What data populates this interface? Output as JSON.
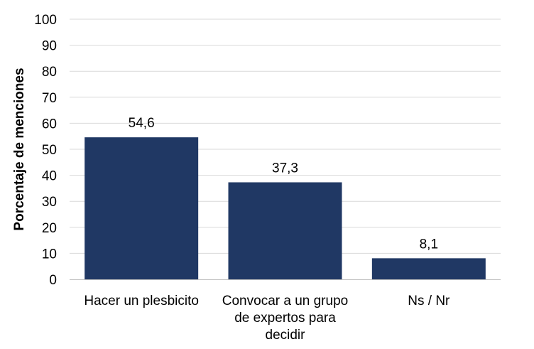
{
  "chart_data": {
    "type": "bar",
    "categories": [
      [
        "Hacer un plesbicito"
      ],
      [
        "Convocar a un grupo",
        "de expertos para",
        "decidir"
      ],
      [
        "Ns / Nr"
      ]
    ],
    "values": [
      54.6,
      37.3,
      8.1
    ],
    "value_labels": [
      "54,6",
      "37,3",
      "8,1"
    ],
    "ylabel": "Porcentaje de menciones",
    "xlabel": "",
    "title": "",
    "ylim": [
      0,
      100
    ],
    "yticks": [
      0,
      10,
      20,
      30,
      40,
      50,
      60,
      70,
      80,
      90,
      100
    ],
    "grid": true,
    "bar_color": "#203864"
  }
}
